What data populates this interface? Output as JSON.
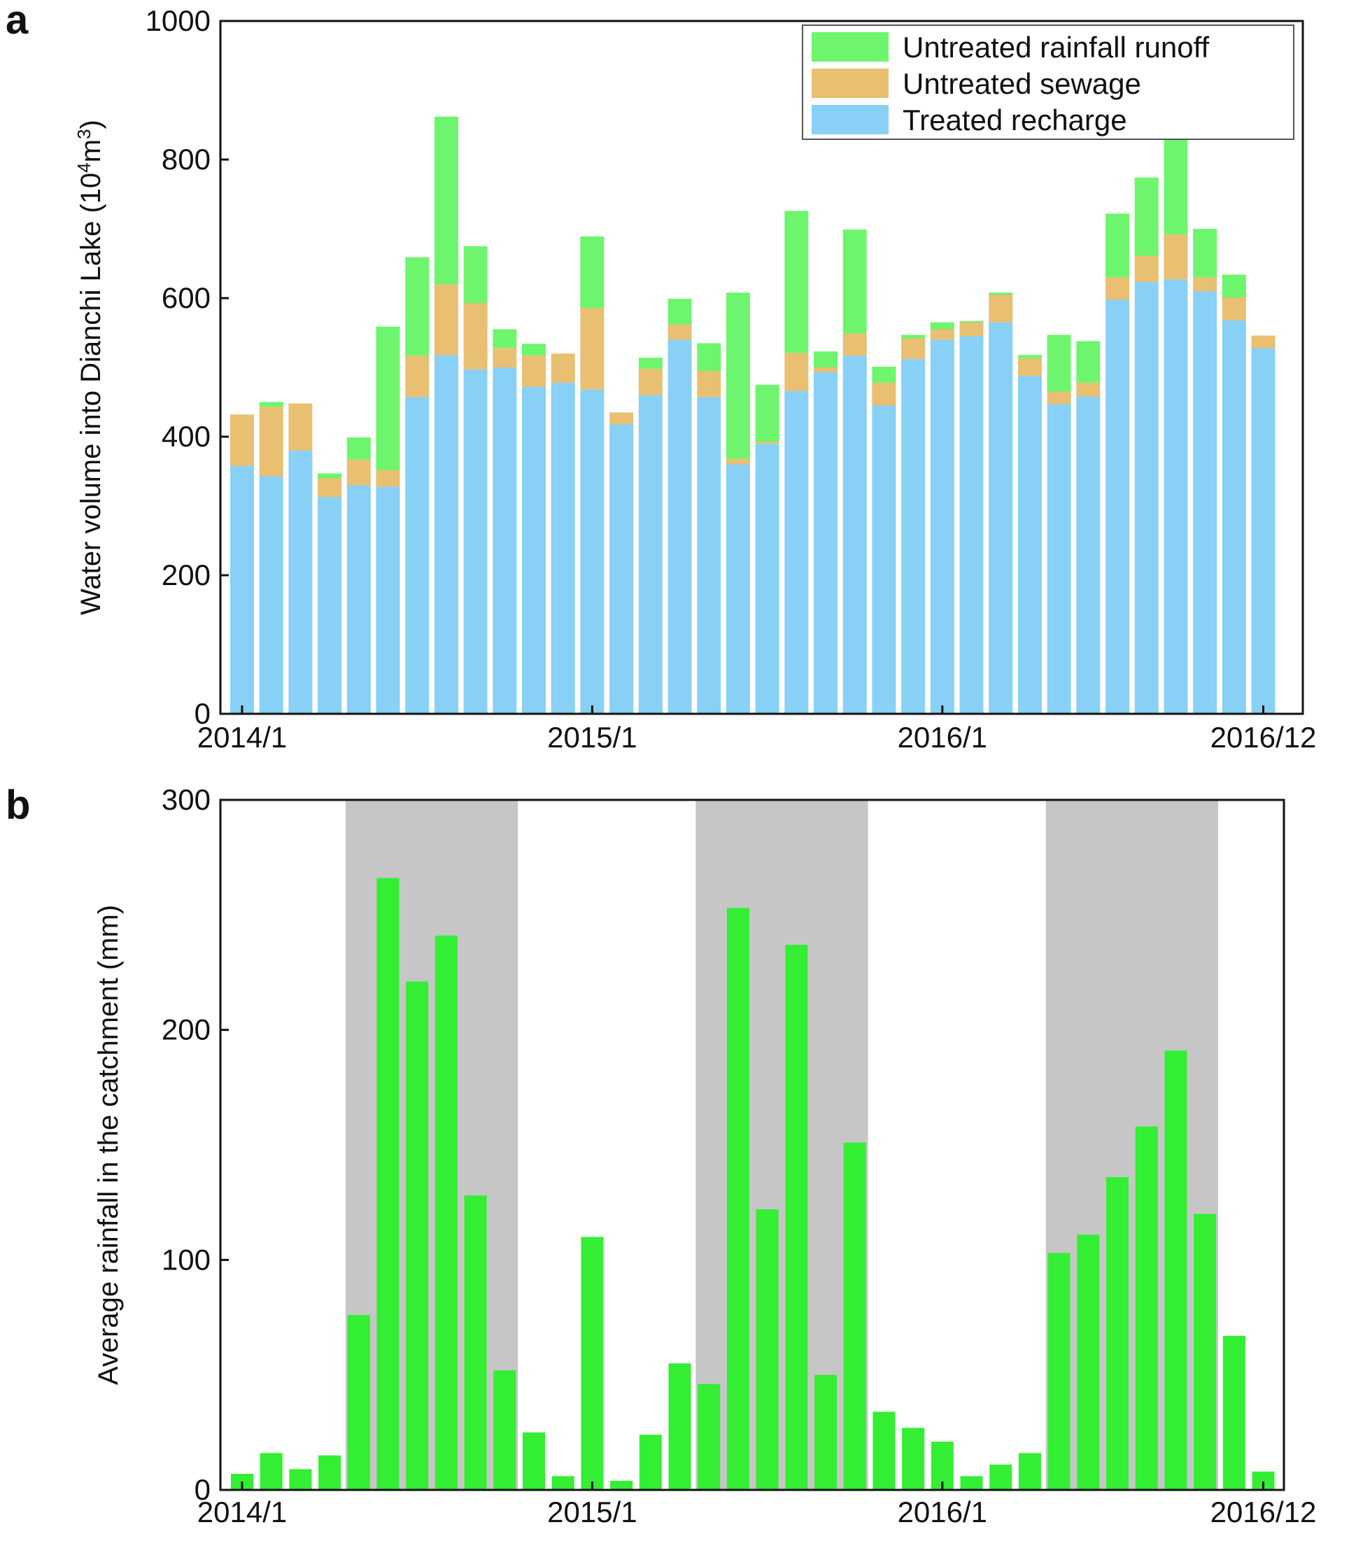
{
  "chart_data": [
    {
      "type": "bar",
      "stacked": true,
      "panel_label": "a",
      "ylabel_main": "Water volume into Dianchi Lake (10",
      "ylabel_sup1": "4",
      "ylabel_mid": "m",
      "ylabel_sup2": "3",
      "ylabel_end": ")",
      "ylim": [
        0,
        1000
      ],
      "yticks": [
        "0",
        "200",
        "400",
        "600",
        "800",
        "1000"
      ],
      "xticks": [
        {
          "index": 0,
          "label": "2014/1"
        },
        {
          "index": 12,
          "label": "2015/1"
        },
        {
          "index": 24,
          "label": "2016/1"
        },
        {
          "index": 35,
          "label": "2016/12"
        }
      ],
      "legend_position": "top-right",
      "categories": [
        "2014/1",
        "2014/2",
        "2014/3",
        "2014/4",
        "2014/5",
        "2014/6",
        "2014/7",
        "2014/8",
        "2014/9",
        "2014/10",
        "2014/11",
        "2014/12",
        "2015/1",
        "2015/2",
        "2015/3",
        "2015/4",
        "2015/5",
        "2015/6",
        "2015/7",
        "2015/8",
        "2015/9",
        "2015/10",
        "2015/11",
        "2015/12",
        "2016/1",
        "2016/2",
        "2016/3",
        "2016/4",
        "2016/5",
        "2016/6",
        "2016/7",
        "2016/8",
        "2016/9",
        "2016/10",
        "2016/11",
        "2016/12"
      ],
      "series": [
        {
          "name": "Treated recharge",
          "color": "#88d0f5",
          "values": [
            358,
            343,
            380,
            313,
            330,
            328,
            457,
            518,
            497,
            500,
            472,
            478,
            468,
            418,
            460,
            540,
            457,
            360,
            390,
            466,
            493,
            517,
            445,
            512,
            540,
            545,
            565,
            488,
            447,
            458,
            598,
            623,
            627,
            610,
            568,
            528
          ]
        },
        {
          "name": "Untreated sewage",
          "color": "#e9bf72",
          "values": [
            74,
            100,
            68,
            27,
            37,
            24,
            60,
            102,
            96,
            28,
            45,
            42,
            118,
            17,
            38,
            22,
            38,
            8,
            3,
            55,
            7,
            32,
            33,
            30,
            15,
            20,
            40,
            25,
            18,
            20,
            32,
            38,
            65,
            20,
            33,
            18
          ]
        },
        {
          "name": "Untreated rainfall runoff",
          "color": "#6ef56e",
          "values": [
            0,
            7,
            0,
            7,
            32,
            207,
            142,
            242,
            82,
            27,
            17,
            0,
            103,
            0,
            16,
            37,
            40,
            240,
            82,
            205,
            23,
            150,
            23,
            5,
            10,
            2,
            3,
            5,
            82,
            60,
            92,
            113,
            140,
            70,
            33,
            0
          ]
        }
      ]
    },
    {
      "type": "bar",
      "panel_label": "b",
      "ylabel": "Average rainfall in the catchment (mm)",
      "ylim": [
        0,
        300
      ],
      "yticks": [
        "0",
        "100",
        "200",
        "300"
      ],
      "xticks": [
        {
          "index": 0,
          "label": "2014/1"
        },
        {
          "index": 12,
          "label": "2015/1"
        },
        {
          "index": 24,
          "label": "2016/1"
        },
        {
          "index": 35,
          "label": "2016/12"
        }
      ],
      "shaded_periods": [
        [
          4,
          9
        ],
        [
          16,
          21
        ],
        [
          28,
          33
        ]
      ],
      "shade_color": "#c6c6c6",
      "bar_color": "#33ee33",
      "categories": [
        "2014/1",
        "2014/2",
        "2014/3",
        "2014/4",
        "2014/5",
        "2014/6",
        "2014/7",
        "2014/8",
        "2014/9",
        "2014/10",
        "2014/11",
        "2014/12",
        "2015/1",
        "2015/2",
        "2015/3",
        "2015/4",
        "2015/5",
        "2015/6",
        "2015/7",
        "2015/8",
        "2015/9",
        "2015/10",
        "2015/11",
        "2015/12",
        "2016/1",
        "2016/2",
        "2016/3",
        "2016/4",
        "2016/5",
        "2016/6",
        "2016/7",
        "2016/8",
        "2016/9",
        "2016/10",
        "2016/11",
        "2016/12"
      ],
      "values": [
        7,
        16,
        9,
        15,
        76,
        266,
        221,
        241,
        128,
        52,
        25,
        6,
        110,
        4,
        24,
        55,
        46,
        253,
        122,
        237,
        50,
        151,
        34,
        27,
        21,
        6,
        11,
        16,
        103,
        111,
        136,
        158,
        191,
        120,
        67,
        8
      ]
    }
  ]
}
